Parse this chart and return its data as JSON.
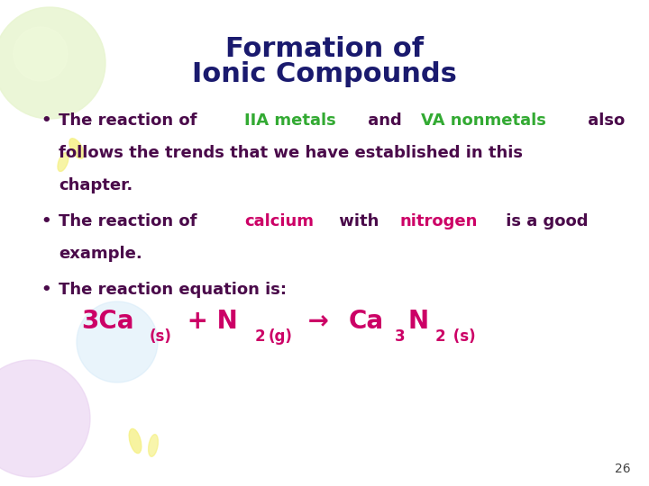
{
  "title_line1": "Formation of",
  "title_line2": "Ionic Compounds",
  "title_color": "#1a1a6e",
  "title_fontsize": 22,
  "bullet_color": "#4a0a4a",
  "bullet_fontsize": 13,
  "equation_color": "#cc0066",
  "equation_fontsize": 20,
  "equation_sub_fontsize": 12,
  "page_number": "26",
  "page_number_fontsize": 10,
  "background_color": "#ffffff",
  "green_color": "#33aa33",
  "magenta_color": "#cc0066",
  "bullet1_parts": [
    {
      "text": "The reaction of ",
      "color": "#4a0a4a"
    },
    {
      "text": "IIA metals",
      "color": "#33aa33"
    },
    {
      "text": " and ",
      "color": "#4a0a4a"
    },
    {
      "text": "VA nonmetals",
      "color": "#33aa33"
    },
    {
      "text": " also",
      "color": "#4a0a4a"
    }
  ],
  "bullet1_line2": "follows the trends that we have established in this",
  "bullet1_line3": "chapter.",
  "bullet2_parts": [
    {
      "text": "The reaction of ",
      "color": "#4a0a4a"
    },
    {
      "text": "calcium",
      "color": "#cc0066"
    },
    {
      "text": " with ",
      "color": "#4a0a4a"
    },
    {
      "text": "nitrogen",
      "color": "#cc0066"
    },
    {
      "text": " is a good",
      "color": "#4a0a4a"
    }
  ],
  "bullet2_line2": "example.",
  "bullet3": "The reaction equation is:"
}
